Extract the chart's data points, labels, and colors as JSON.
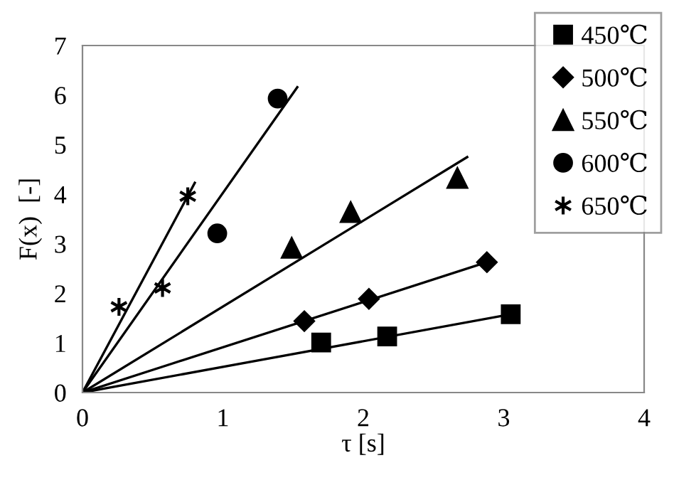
{
  "chart_data": {
    "type": "scatter",
    "xlabel": "τ [s]",
    "ylabel": "F(x)  [-]",
    "xlim": [
      0,
      4
    ],
    "ylim": [
      0,
      7
    ],
    "xticks": [
      0,
      1,
      2,
      3,
      4
    ],
    "yticks": [
      0,
      1,
      2,
      3,
      4,
      5,
      6,
      7
    ],
    "grid": false,
    "legend": "top right",
    "series": [
      {
        "name": "450℃",
        "color": "#000000",
        "marker": "square",
        "x": [
          1.7,
          2.17,
          3.05
        ],
        "values": [
          1.01,
          1.13,
          1.58
        ]
      },
      {
        "name": "500℃",
        "color": "#000000",
        "marker": "diamond",
        "x": [
          1.58,
          2.04,
          2.88
        ],
        "values": [
          1.44,
          1.89,
          2.63
        ]
      },
      {
        "name": "550℃",
        "color": "#000000",
        "marker": "triangle",
        "x": [
          1.49,
          1.91,
          2.67
        ],
        "values": [
          2.92,
          3.64,
          4.33
        ]
      },
      {
        "name": "600℃",
        "color": "#000000",
        "marker": "circle",
        "x": [
          0.96,
          1.39
        ],
        "values": [
          3.21,
          5.93
        ]
      },
      {
        "name": "650℃",
        "color": "#000000",
        "marker": "cross",
        "x": [
          0.26,
          0.57,
          0.75
        ],
        "values": [
          1.73,
          2.11,
          3.96
        ]
      },
      {
        "type": "line",
        "color": "#000000",
        "x": [
          0,
          3.05
        ],
        "values": [
          0,
          1.58
        ]
      },
      {
        "type": "line",
        "color": "#000000",
        "x": [
          0,
          2.88
        ],
        "values": [
          0,
          2.63
        ]
      },
      {
        "type": "line",
        "color": "#000000",
        "x": [
          0,
          2.74
        ],
        "values": [
          0,
          4.75
        ]
      },
      {
        "type": "line",
        "color": "#000000",
        "x": [
          0,
          1.53
        ],
        "values": [
          0,
          6.16
        ]
      },
      {
        "type": "line",
        "color": "#000000",
        "x": [
          0,
          0.8
        ],
        "values": [
          0,
          4.23
        ]
      }
    ]
  }
}
